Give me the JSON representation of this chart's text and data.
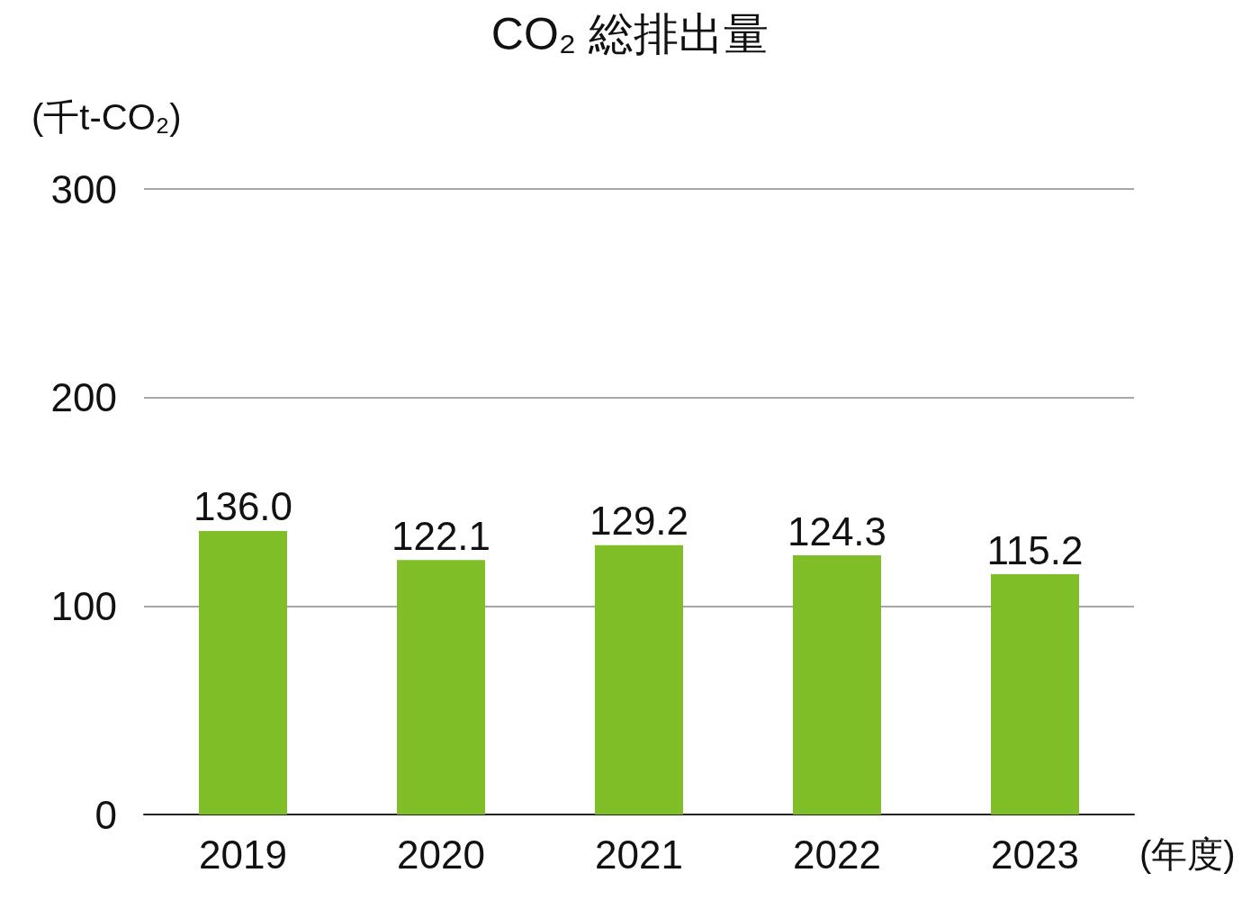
{
  "chart_data": {
    "type": "bar",
    "title": "CO₂ 総排出量",
    "ylabel": "(千t-CO₂)",
    "xlabel": "(年度)",
    "categories": [
      "2019",
      "2020",
      "2021",
      "2022",
      "2023"
    ],
    "values": [
      136.0,
      122.1,
      129.2,
      124.3,
      115.2
    ],
    "value_labels": [
      "136.0",
      "122.1",
      "129.2",
      "124.3",
      "115.2"
    ],
    "color": "#80be28",
    "ylim": [
      0,
      300
    ],
    "yticks": [
      0,
      100,
      200,
      300
    ],
    "grid": "y"
  }
}
